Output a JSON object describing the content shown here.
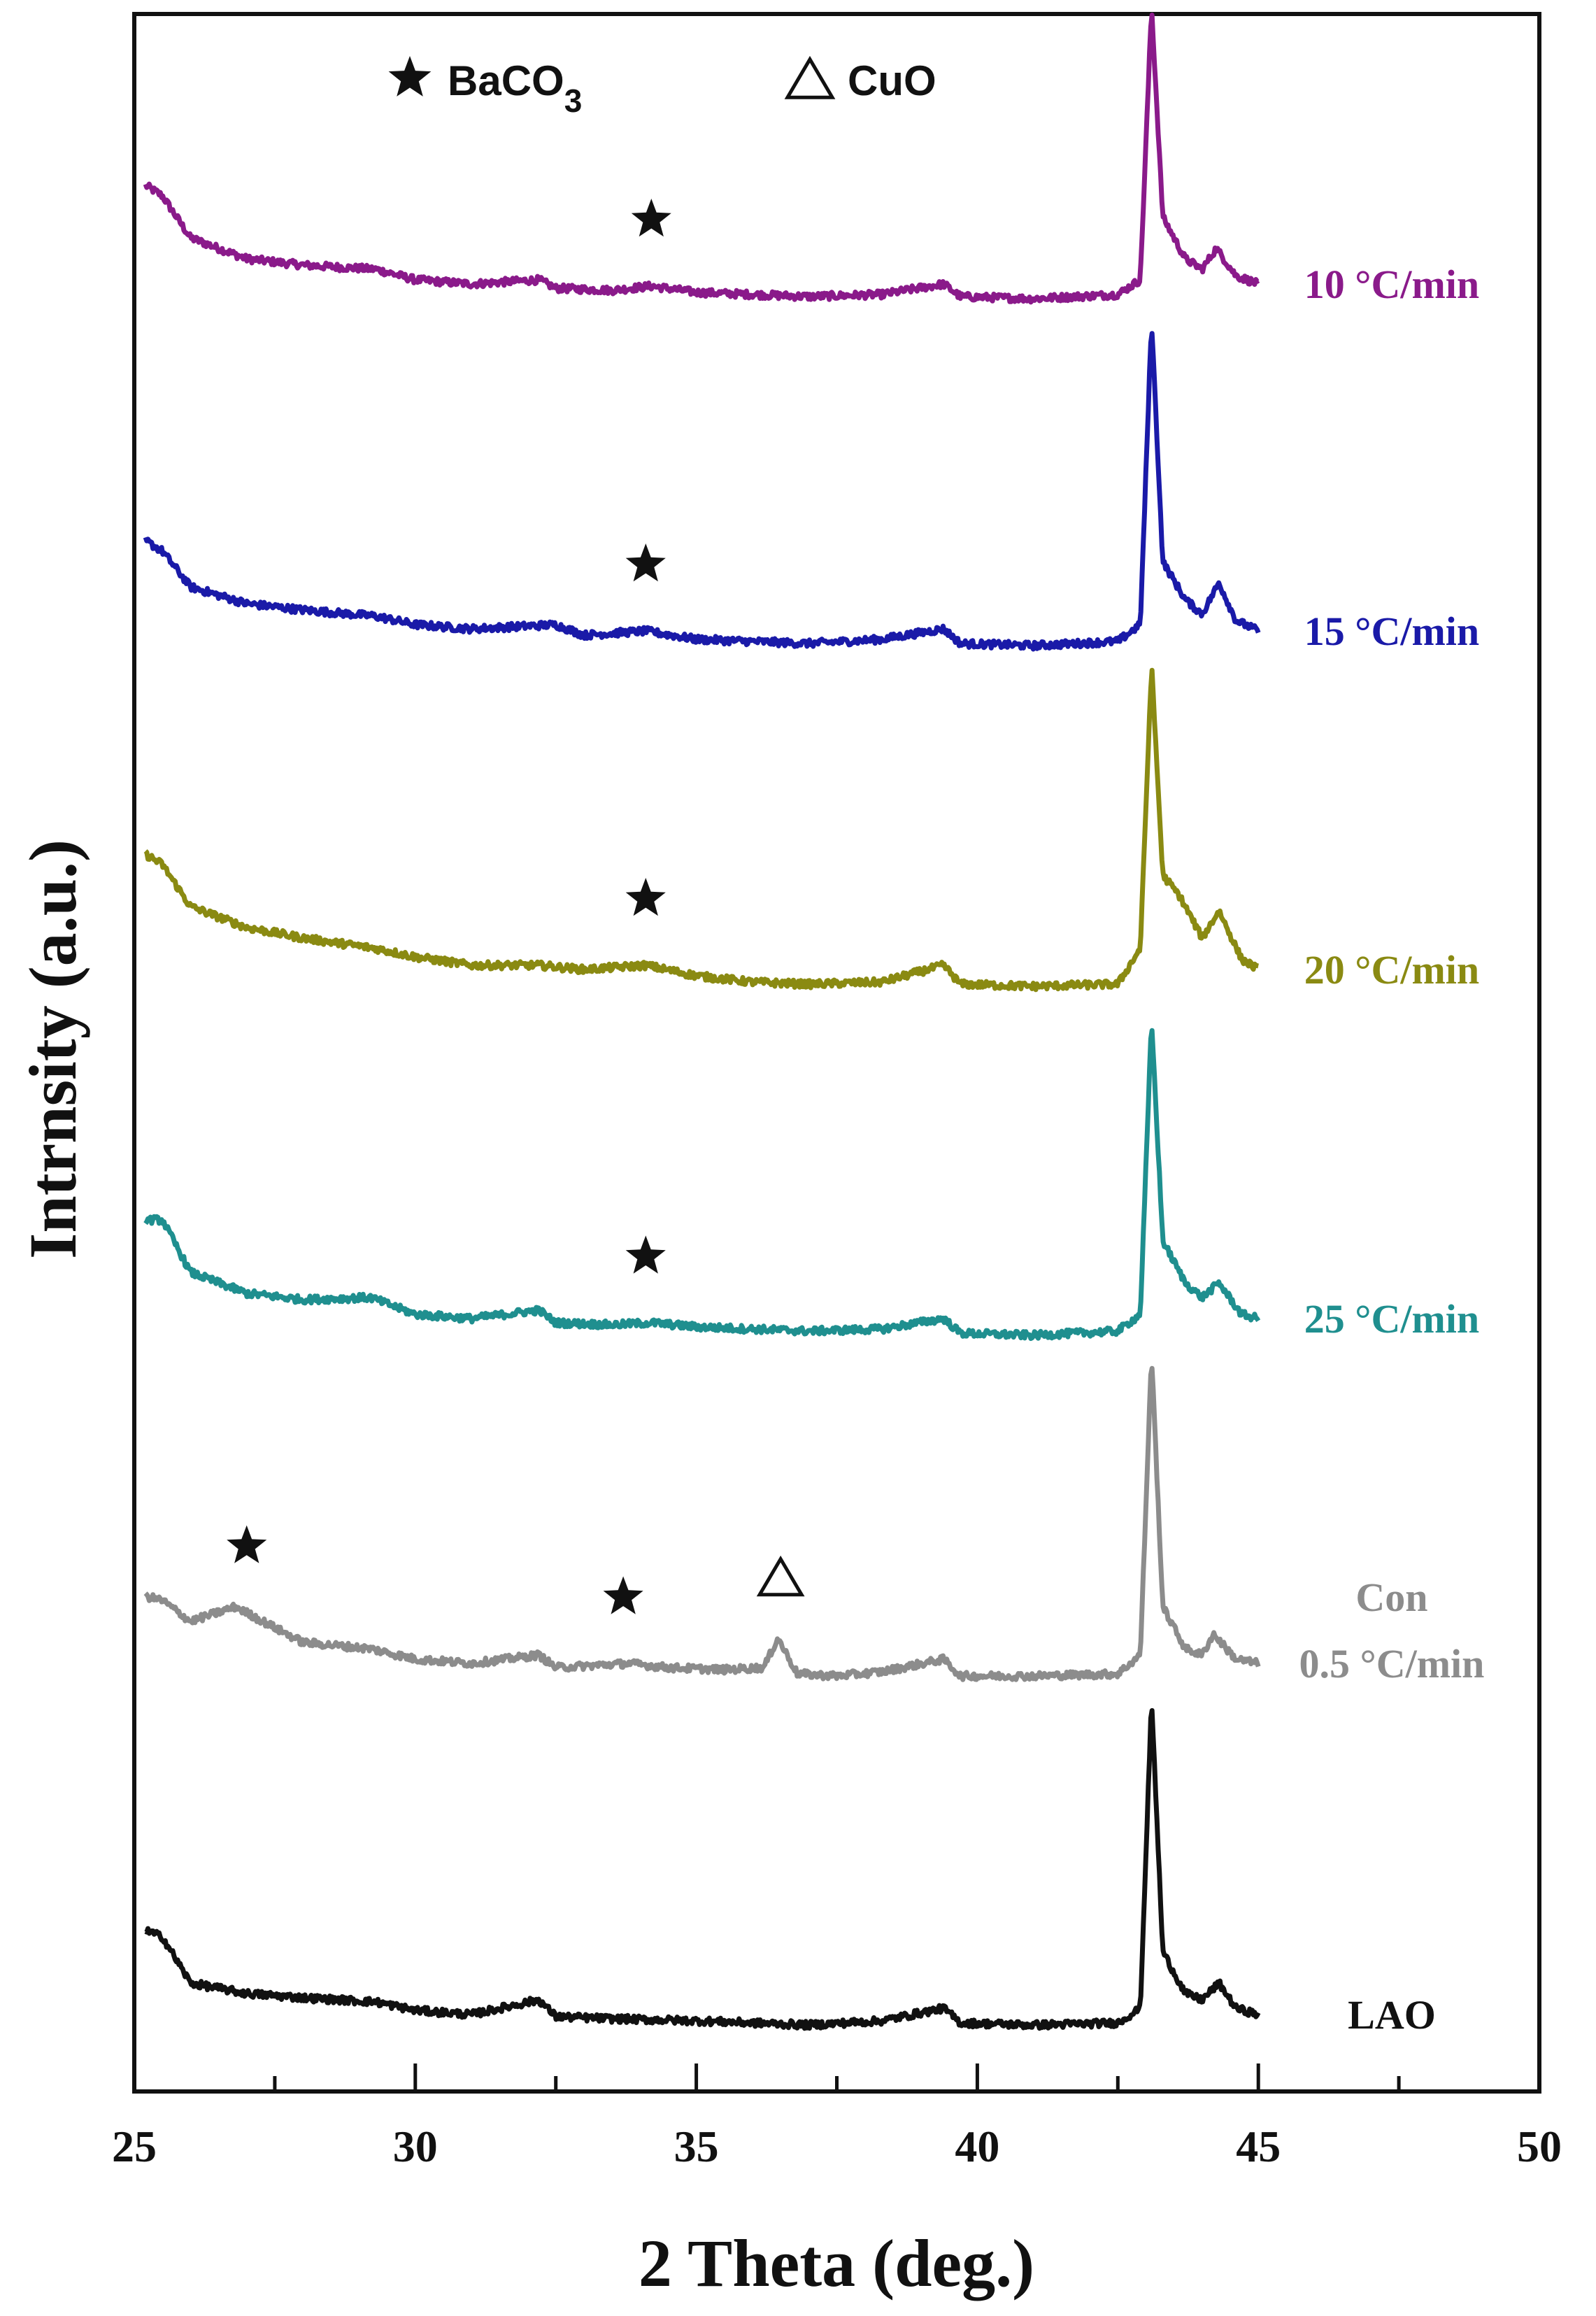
{
  "chart_data": {
    "type": "line",
    "xlabel": "2 Theta (deg.)",
    "ylabel": "Intrnsity (a.u.)",
    "xlim": [
      25,
      50
    ],
    "xticks": [
      25,
      30,
      35,
      40,
      45,
      50
    ],
    "grid": false,
    "legend": {
      "placement": "top-center",
      "items": [
        {
          "symbol": "filled-star",
          "label": "BaCO",
          "subscript": "3"
        },
        {
          "symbol": "open-triangle",
          "label": "CuO"
        }
      ]
    },
    "series": [
      {
        "name": "10 °C/min",
        "color": "#8a1a8a",
        "offset": 5,
        "points": [
          [
            25.2,
            0.55
          ],
          [
            25.5,
            0.5
          ],
          [
            26,
            0.3
          ],
          [
            27,
            0.2
          ],
          [
            28,
            0.17
          ],
          [
            29.3,
            0.15
          ],
          [
            30,
            0.1
          ],
          [
            31,
            0.08
          ],
          [
            32.2,
            0.1
          ],
          [
            32.5,
            0.06
          ],
          [
            33.5,
            0.05
          ],
          [
            34.2,
            0.07
          ],
          [
            35,
            0.04
          ],
          [
            36,
            0.03
          ],
          [
            37,
            0.02
          ],
          [
            38.3,
            0.03
          ],
          [
            39.4,
            0.08
          ],
          [
            39.7,
            0.02
          ],
          [
            41,
            0.01
          ],
          [
            42.5,
            0.03
          ],
          [
            42.9,
            0.1
          ],
          [
            43.1,
            1.4
          ],
          [
            43.3,
            0.4
          ],
          [
            43.7,
            0.2
          ],
          [
            44,
            0.15
          ],
          [
            44.25,
            0.25
          ],
          [
            44.6,
            0.12
          ],
          [
            45,
            0.08
          ]
        ]
      },
      {
        "name": "15 °C/min",
        "color": "#1a1aa8",
        "offset": 4,
        "points": [
          [
            25.2,
            0.5
          ],
          [
            25.5,
            0.45
          ],
          [
            26,
            0.28
          ],
          [
            27,
            0.2
          ],
          [
            28,
            0.17
          ],
          [
            29.3,
            0.14
          ],
          [
            30,
            0.1
          ],
          [
            31,
            0.08
          ],
          [
            32.5,
            0.1
          ],
          [
            33,
            0.05
          ],
          [
            34.1,
            0.07
          ],
          [
            35,
            0.03
          ],
          [
            36,
            0.02
          ],
          [
            37,
            0.01
          ],
          [
            38.3,
            0.03
          ],
          [
            39.4,
            0.08
          ],
          [
            39.7,
            0.01
          ],
          [
            41,
            0.0
          ],
          [
            42.5,
            0.02
          ],
          [
            42.9,
            0.1
          ],
          [
            43.1,
            1.55
          ],
          [
            43.3,
            0.4
          ],
          [
            43.7,
            0.22
          ],
          [
            44,
            0.15
          ],
          [
            44.3,
            0.3
          ],
          [
            44.6,
            0.12
          ],
          [
            45,
            0.07
          ]
        ]
      },
      {
        "name": "20 °C/min",
        "color": "#8a8a12",
        "offset": 3,
        "points": [
          [
            25.2,
            0.65
          ],
          [
            25.5,
            0.6
          ],
          [
            26,
            0.4
          ],
          [
            27,
            0.3
          ],
          [
            28,
            0.25
          ],
          [
            29.3,
            0.2
          ],
          [
            30,
            0.16
          ],
          [
            31,
            0.12
          ],
          [
            32.2,
            0.12
          ],
          [
            33,
            0.1
          ],
          [
            34.1,
            0.12
          ],
          [
            35,
            0.07
          ],
          [
            36,
            0.04
          ],
          [
            37,
            0.03
          ],
          [
            38.3,
            0.04
          ],
          [
            39.4,
            0.12
          ],
          [
            39.7,
            0.03
          ],
          [
            41,
            0.02
          ],
          [
            42.5,
            0.03
          ],
          [
            42.9,
            0.2
          ],
          [
            43.1,
            1.55
          ],
          [
            43.3,
            0.55
          ],
          [
            43.6,
            0.45
          ],
          [
            44,
            0.25
          ],
          [
            44.3,
            0.38
          ],
          [
            44.7,
            0.15
          ],
          [
            45,
            0.1
          ]
        ]
      },
      {
        "name": "25 °C/min",
        "color": "#1f8f8f",
        "offset": 2,
        "points": [
          [
            25.2,
            0.55
          ],
          [
            25.5,
            0.55
          ],
          [
            26,
            0.3
          ],
          [
            27,
            0.2
          ],
          [
            28,
            0.17
          ],
          [
            29.2,
            0.18
          ],
          [
            30,
            0.1
          ],
          [
            31,
            0.08
          ],
          [
            32.2,
            0.12
          ],
          [
            32.5,
            0.06
          ],
          [
            33.5,
            0.05
          ],
          [
            34.2,
            0.06
          ],
          [
            35,
            0.04
          ],
          [
            36,
            0.03
          ],
          [
            37,
            0.02
          ],
          [
            38.3,
            0.03
          ],
          [
            39.4,
            0.08
          ],
          [
            39.7,
            0.01
          ],
          [
            41,
            0.0
          ],
          [
            42.5,
            0.02
          ],
          [
            42.9,
            0.1
          ],
          [
            43.1,
            1.5
          ],
          [
            43.3,
            0.45
          ],
          [
            43.7,
            0.25
          ],
          [
            44,
            0.18
          ],
          [
            44.3,
            0.25
          ],
          [
            44.7,
            0.1
          ],
          [
            45,
            0.08
          ]
        ]
      },
      {
        "name": "Con 0.5 °C/min",
        "color": "#8c8c8c",
        "offset": 1,
        "points": [
          [
            25.2,
            0.4
          ],
          [
            25.5,
            0.38
          ],
          [
            26,
            0.28
          ],
          [
            26.8,
            0.35
          ],
          [
            27.5,
            0.25
          ],
          [
            28,
            0.18
          ],
          [
            29.2,
            0.15
          ],
          [
            30,
            0.1
          ],
          [
            31,
            0.08
          ],
          [
            32.2,
            0.12
          ],
          [
            32.5,
            0.06
          ],
          [
            33.8,
            0.08
          ],
          [
            34.5,
            0.06
          ],
          [
            35.5,
            0.05
          ],
          [
            36.2,
            0.06
          ],
          [
            36.45,
            0.2
          ],
          [
            36.8,
            0.03
          ],
          [
            37.5,
            0.02
          ],
          [
            38.3,
            0.04
          ],
          [
            39.4,
            0.1
          ],
          [
            39.7,
            0.02
          ],
          [
            41,
            0.02
          ],
          [
            42.5,
            0.03
          ],
          [
            42.9,
            0.12
          ],
          [
            43.1,
            1.55
          ],
          [
            43.3,
            0.35
          ],
          [
            43.7,
            0.15
          ],
          [
            44,
            0.12
          ],
          [
            44.2,
            0.22
          ],
          [
            44.6,
            0.1
          ],
          [
            45,
            0.08
          ]
        ]
      },
      {
        "name": "LAO",
        "color": "#111111",
        "offset": 0,
        "points": [
          [
            25.2,
            0.45
          ],
          [
            25.5,
            0.42
          ],
          [
            26,
            0.2
          ],
          [
            27,
            0.15
          ],
          [
            28,
            0.13
          ],
          [
            29.3,
            0.11
          ],
          [
            30,
            0.07
          ],
          [
            31,
            0.05
          ],
          [
            32.2,
            0.12
          ],
          [
            32.5,
            0.04
          ],
          [
            33.5,
            0.03
          ],
          [
            35,
            0.02
          ],
          [
            36,
            0.01
          ],
          [
            37,
            0.0
          ],
          [
            38.3,
            0.02
          ],
          [
            39.4,
            0.08
          ],
          [
            39.7,
            0.01
          ],
          [
            41,
            0.0
          ],
          [
            42.5,
            0.01
          ],
          [
            42.9,
            0.08
          ],
          [
            43.1,
            1.55
          ],
          [
            43.3,
            0.35
          ],
          [
            43.7,
            0.15
          ],
          [
            44,
            0.12
          ],
          [
            44.3,
            0.2
          ],
          [
            44.6,
            0.08
          ],
          [
            45,
            0.05
          ]
        ]
      }
    ],
    "annotations": [
      {
        "marker": "filled-star",
        "series": "10 °C/min",
        "x": 34.2
      },
      {
        "marker": "filled-star",
        "series": "15 °C/min",
        "x": 34.1
      },
      {
        "marker": "filled-star",
        "series": "20 °C/min",
        "x": 34.1
      },
      {
        "marker": "filled-star",
        "series": "25 °C/min",
        "x": 34.1
      },
      {
        "marker": "filled-star",
        "series": "Con 0.5 °C/min",
        "x": 27.0
      },
      {
        "marker": "filled-star",
        "series": "Con 0.5 °C/min",
        "x": 33.7
      },
      {
        "marker": "open-triangle",
        "series": "Con 0.5 °C/min",
        "x": 36.5
      }
    ],
    "series_labels": [
      {
        "series": "10 °C/min",
        "lines": [
          "10 °C/min"
        ]
      },
      {
        "series": "15 °C/min",
        "lines": [
          "15 °C/min"
        ]
      },
      {
        "series": "20 °C/min",
        "lines": [
          "20 °C/min"
        ]
      },
      {
        "series": "25 °C/min",
        "lines": [
          "25 °C/min"
        ]
      },
      {
        "series": "Con 0.5 °C/min",
        "lines": [
          "Con",
          "0.5 °C/min"
        ]
      },
      {
        "series": "LAO",
        "lines": [
          "LAO"
        ]
      }
    ]
  }
}
